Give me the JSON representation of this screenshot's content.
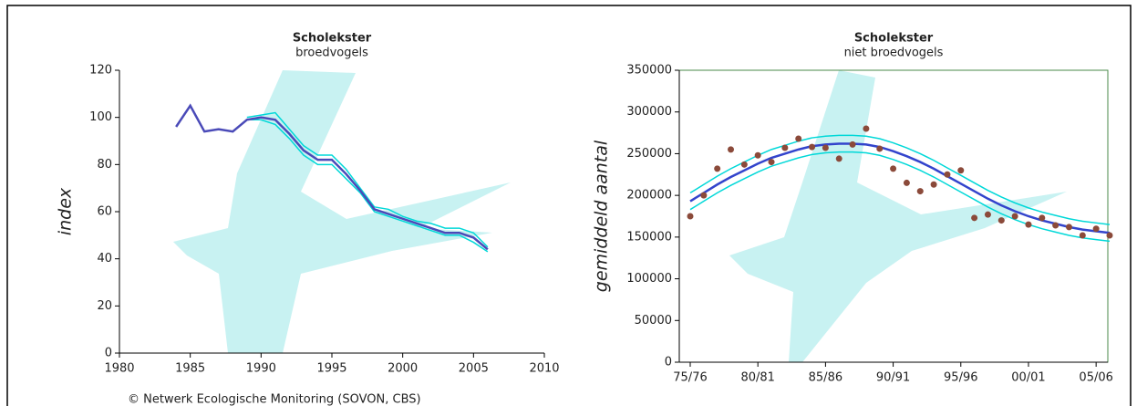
{
  "chart_data": [
    {
      "type": "line",
      "title": "Scholekster",
      "subtitle": "broedvogels",
      "y_label": "index",
      "source": "© Netwerk Ecologische Monitoring (SOVON, CBS)",
      "x": [
        1984,
        1985,
        1986,
        1987,
        1988,
        1989,
        1990,
        1991,
        1992,
        1993,
        1994,
        1995,
        1996,
        1997,
        1998,
        1999,
        2000,
        2001,
        2002,
        2003,
        2004,
        2005,
        2006
      ],
      "xlim": [
        1980,
        2010
      ],
      "xticks": [
        1980,
        1985,
        1990,
        1995,
        2000,
        2005,
        2010
      ],
      "ylim": [
        0,
        120
      ],
      "yticks": [
        0,
        20,
        40,
        60,
        80,
        100,
        120
      ],
      "box": false,
      "series": [
        {
          "color": "#00d8d8",
          "mode": "line",
          "values": [
            null,
            null,
            null,
            null,
            null,
            100,
            101,
            102,
            95,
            88,
            84,
            84,
            78,
            70,
            62,
            61,
            58,
            56,
            55,
            53,
            53,
            51,
            45
          ]
        },
        {
          "color": "#00d8d8",
          "mode": "line",
          "values": [
            null,
            null,
            null,
            null,
            null,
            99,
            99,
            97,
            91,
            84,
            80,
            80,
            74,
            68,
            60,
            58,
            56,
            54,
            52,
            50,
            50,
            47,
            43
          ]
        },
        {
          "color": "#4a4ab8",
          "mode": "line",
          "values": [
            96,
            105,
            94,
            95,
            94,
            99,
            100,
            99,
            93,
            86,
            82,
            82,
            76,
            69,
            61,
            59,
            57,
            55,
            53,
            51,
            51,
            49,
            44
          ]
        }
      ]
    },
    {
      "type": "line",
      "title": "Scholekster",
      "subtitle": "niet broedvogels",
      "y_label": "gemiddeld aantal",
      "categories": [
        "75/76",
        null,
        null,
        null,
        null,
        "80/81",
        null,
        null,
        null,
        null,
        "85/86",
        null,
        null,
        null,
        null,
        "90/91",
        null,
        null,
        null,
        null,
        "95/96",
        null,
        null,
        null,
        null,
        "00/01",
        null,
        null,
        null,
        null,
        "05/06",
        null
      ],
      "ylim": [
        0,
        350000
      ],
      "yticks": [
        0,
        50000,
        100000,
        150000,
        200000,
        250000,
        300000,
        350000
      ],
      "box": true,
      "series": [
        {
          "color": "#00d8d8",
          "mode": "line",
          "values": [
            203000,
            213000,
            223000,
            232000,
            240000,
            248000,
            255000,
            260000,
            265000,
            269000,
            271000,
            272000,
            272000,
            271000,
            268000,
            263000,
            257000,
            250000,
            242000,
            233000,
            224000,
            215000,
            206000,
            198000,
            191000,
            185000,
            180000,
            176000,
            172000,
            169000,
            167000,
            165000
          ]
        },
        {
          "color": "#00d8d8",
          "mode": "line",
          "values": [
            183000,
            193000,
            203000,
            212000,
            220000,
            228000,
            235000,
            240000,
            245000,
            249000,
            251000,
            252000,
            252000,
            251000,
            248000,
            243000,
            237000,
            230000,
            222000,
            213000,
            204000,
            195000,
            186000,
            178000,
            171000,
            165000,
            160000,
            156000,
            152000,
            149000,
            147000,
            145000
          ]
        },
        {
          "color": "#3344cc",
          "mode": "line",
          "values": [
            193000,
            203000,
            213000,
            222000,
            230000,
            238000,
            245000,
            250000,
            255000,
            259000,
            261000,
            262000,
            262000,
            261000,
            258000,
            253000,
            247000,
            240000,
            232000,
            223000,
            214000,
            205000,
            196000,
            188000,
            181000,
            175000,
            170000,
            166000,
            162000,
            159000,
            157000,
            155000
          ]
        },
        {
          "color": "#8b4a3a",
          "mode": "points",
          "values": [
            175000,
            200000,
            232000,
            255000,
            237000,
            248000,
            240000,
            257000,
            268000,
            258000,
            257000,
            244000,
            261000,
            280000,
            256000,
            232000,
            215000,
            205000,
            213000,
            225000,
            230000,
            173000,
            177000,
            170000,
            175000,
            165000,
            173000,
            164000,
            162000,
            152000,
            160000,
            152000
          ]
        }
      ]
    }
  ]
}
